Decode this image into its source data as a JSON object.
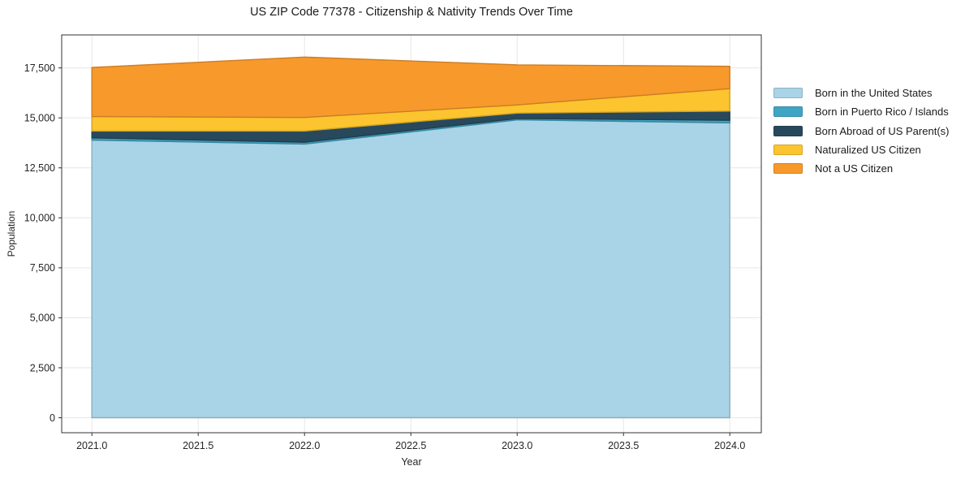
{
  "figure": {
    "background": "#ffffff"
  },
  "chart_data": {
    "type": "area",
    "stacked": true,
    "title": "US ZIP Code 77378 - Citizenship & Nativity Trends Over Time",
    "xlabel": "Year",
    "ylabel": "Population",
    "x": [
      2021,
      2022,
      2023,
      2024
    ],
    "series": [
      {
        "name": "Born in the United States",
        "color": "#a9d3e7",
        "values": [
          13890,
          13690,
          14900,
          14750
        ]
      },
      {
        "name": "Born in Puerto Rico / Islands",
        "color": "#3fa5c4",
        "values": [
          110,
          90,
          70,
          130
        ]
      },
      {
        "name": "Born Abroad of US Parent(s)",
        "color": "#28495c",
        "values": [
          340,
          560,
          270,
          460
        ]
      },
      {
        "name": "Naturalized US Citizen",
        "color": "#fcc42e",
        "values": [
          730,
          680,
          410,
          1120
        ]
      },
      {
        "name": "Not a US Citizen",
        "color": "#f8992c",
        "values": [
          2450,
          3020,
          2000,
          1120
        ]
      }
    ],
    "stack_totals": [
      17520,
      18040,
      17650,
      17580
    ],
    "x_ticks": [
      2021.0,
      2021.5,
      2022.0,
      2022.5,
      2023.0,
      2023.5,
      2024.0
    ],
    "x_tick_labels": [
      "2021.0",
      "2021.5",
      "2022.0",
      "2022.5",
      "2023.0",
      "2023.5",
      "2024.0"
    ],
    "y_ticks": [
      0,
      2500,
      5000,
      7500,
      10000,
      12500,
      15000,
      17500
    ],
    "y_tick_labels": [
      "0",
      "2,500",
      "5,000",
      "7,500",
      "10,000",
      "12,500",
      "15,000",
      "17,500"
    ],
    "xlim": [
      2020.858,
      2024.148
    ],
    "ylim": [
      -750,
      19150
    ],
    "grid": true,
    "legend_position": "right-outside"
  },
  "colors": {
    "title": "#1a1a1a",
    "text": "#262626",
    "grid": "#e6e6e6",
    "spine": "#333333"
  }
}
